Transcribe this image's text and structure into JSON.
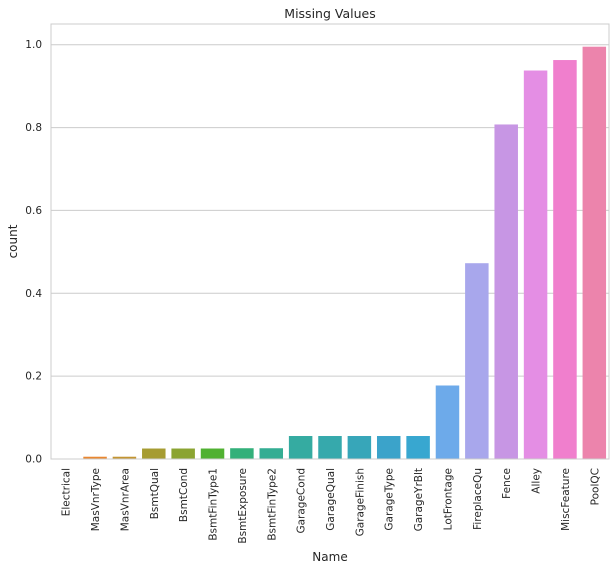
{
  "chart_data": {
    "type": "bar",
    "title": "Missing Values",
    "xlabel": "Name",
    "ylabel": "count",
    "ylim": [
      0,
      1.05
    ],
    "yticks": [
      "0.0",
      "0.2",
      "0.4",
      "0.6",
      "0.8",
      "1.0"
    ],
    "grid": "horizontal",
    "categories": [
      "Electrical",
      "MasVnrType",
      "MasVnrArea",
      "BsmtQual",
      "BsmtCond",
      "BsmtFinType1",
      "BsmtExposure",
      "BsmtFinType2",
      "GarageCond",
      "GarageQual",
      "GarageFinish",
      "GarageType",
      "GarageYrBlt",
      "LotFrontage",
      "FireplaceQu",
      "Fence",
      "Alley",
      "MiscFeature",
      "PoolQC"
    ],
    "values": [
      0.0007,
      0.0055,
      0.0055,
      0.0253,
      0.0253,
      0.0253,
      0.026,
      0.026,
      0.0555,
      0.0555,
      0.0555,
      0.0555,
      0.0555,
      0.1774,
      0.4726,
      0.8075,
      0.9377,
      0.963,
      0.9952
    ],
    "colors": [
      "#f77189",
      "#e98731",
      "#c39532",
      "#a69c32",
      "#8ba432",
      "#50b131",
      "#33b07a",
      "#34ad93",
      "#35aba1",
      "#36a9ac",
      "#37a6b9",
      "#3ba3ca",
      "#38a7d0",
      "#6daaea",
      "#a8a7ec",
      "#c796e4",
      "#e48ee4",
      "#f07fcd",
      "#ec84ac"
    ]
  }
}
